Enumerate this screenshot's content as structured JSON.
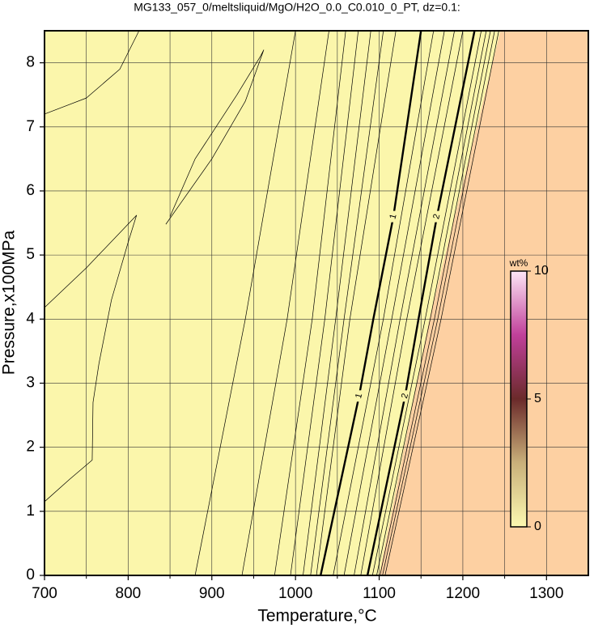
{
  "chart_data": {
    "type": "contour",
    "title": "MG133_057_0/meltsliquid/MgO/H2O_0.0_C0.010_0_PT, dz=0.1:",
    "xlabel": "Temperature,°C",
    "ylabel": "Pressure,x100MPa",
    "xlim": [
      700,
      1350
    ],
    "ylim": [
      0,
      8.5
    ],
    "xticks": [
      700,
      800,
      900,
      1000,
      1100,
      1200,
      1300
    ],
    "xgrid_minor": [
      750,
      850,
      950,
      1050,
      1150,
      1250
    ],
    "yticks": [
      0,
      1,
      2,
      3,
      4,
      5,
      6,
      7,
      8
    ],
    "grid": true,
    "background_color": "#fbf6ab",
    "region": {
      "color": "#fdd0a2",
      "x": [
        1100,
        1160,
        1245
      ],
      "y": [
        0,
        4,
        8.5
      ]
    },
    "contours": [
      {
        "x": [
          700,
          750,
          790,
          813
        ],
        "y": [
          7.2,
          7.45,
          7.9,
          8.5
        ]
      },
      {
        "x": [
          700,
          750,
          810,
          800,
          780,
          765,
          758,
          757,
          730,
          700
        ],
        "y": [
          4.18,
          4.8,
          5.62,
          5.2,
          4.3,
          3.3,
          2.7,
          1.8,
          1.5,
          1.15
        ]
      },
      {
        "x": [
          845,
          900,
          940,
          962,
          958,
          930,
          880,
          850
        ],
        "y": [
          5.48,
          6.5,
          7.4,
          8.2,
          8.1,
          7.5,
          6.5,
          5.6
        ]
      },
      {
        "x": [
          880,
          940,
          1000
        ],
        "y": [
          0,
          4,
          8.5
        ]
      },
      {
        "x": [
          936,
          990,
          1040
        ],
        "y": [
          0,
          4,
          8.5
        ]
      },
      {
        "x": [
          975,
          1020,
          1060
        ],
        "y": [
          0,
          4,
          8.5
        ]
      },
      {
        "x": [
          994,
          1035,
          1075
        ],
        "y": [
          0,
          4,
          8.5
        ]
      },
      {
        "x": [
          1009,
          1048,
          1090
        ],
        "y": [
          0,
          4,
          8.5
        ]
      },
      {
        "x": [
          1018,
          1058,
          1105
        ],
        "y": [
          0,
          4,
          8.5
        ]
      },
      {
        "x": [
          1025,
          1065,
          1120
        ],
        "y": [
          0,
          4,
          8.5
        ]
      },
      {
        "level": 1,
        "x": [
          1030,
          1076,
          1093,
          1117,
          1150
        ],
        "y": [
          0,
          2.8,
          4,
          5.6,
          8.5
        ]
      },
      {
        "x": [
          1045,
          1105,
          1165
        ],
        "y": [
          0,
          4,
          8.5
        ]
      },
      {
        "x": [
          1058,
          1115,
          1178
        ],
        "y": [
          0,
          4,
          8.5
        ]
      },
      {
        "x": [
          1070,
          1125,
          1190
        ],
        "y": [
          0,
          4,
          8.5
        ]
      },
      {
        "x": [
          1078,
          1133,
          1200
        ],
        "y": [
          0,
          4,
          8.5
        ]
      },
      {
        "level": 2,
        "x": [
          1086,
          1131,
          1147,
          1169,
          1214
        ],
        "y": [
          0,
          2.8,
          4,
          5.6,
          8.5
        ]
      },
      {
        "x": [
          1092,
          1155,
          1222
        ],
        "y": [
          0,
          4,
          8.5
        ]
      },
      {
        "x": [
          1097,
          1161,
          1228
        ],
        "y": [
          0,
          4,
          8.5
        ]
      },
      {
        "x": [
          1101,
          1166,
          1233
        ],
        "y": [
          0,
          4,
          8.5
        ]
      },
      {
        "x": [
          1104,
          1170,
          1238
        ],
        "y": [
          0,
          4,
          8.5
        ]
      },
      {
        "x": [
          1107,
          1174,
          1243
        ],
        "y": [
          0,
          4,
          8.5
        ]
      }
    ],
    "colorbar": {
      "label": "wt%",
      "lim": [
        0,
        10
      ],
      "ticks": [
        0,
        5,
        10
      ]
    }
  }
}
